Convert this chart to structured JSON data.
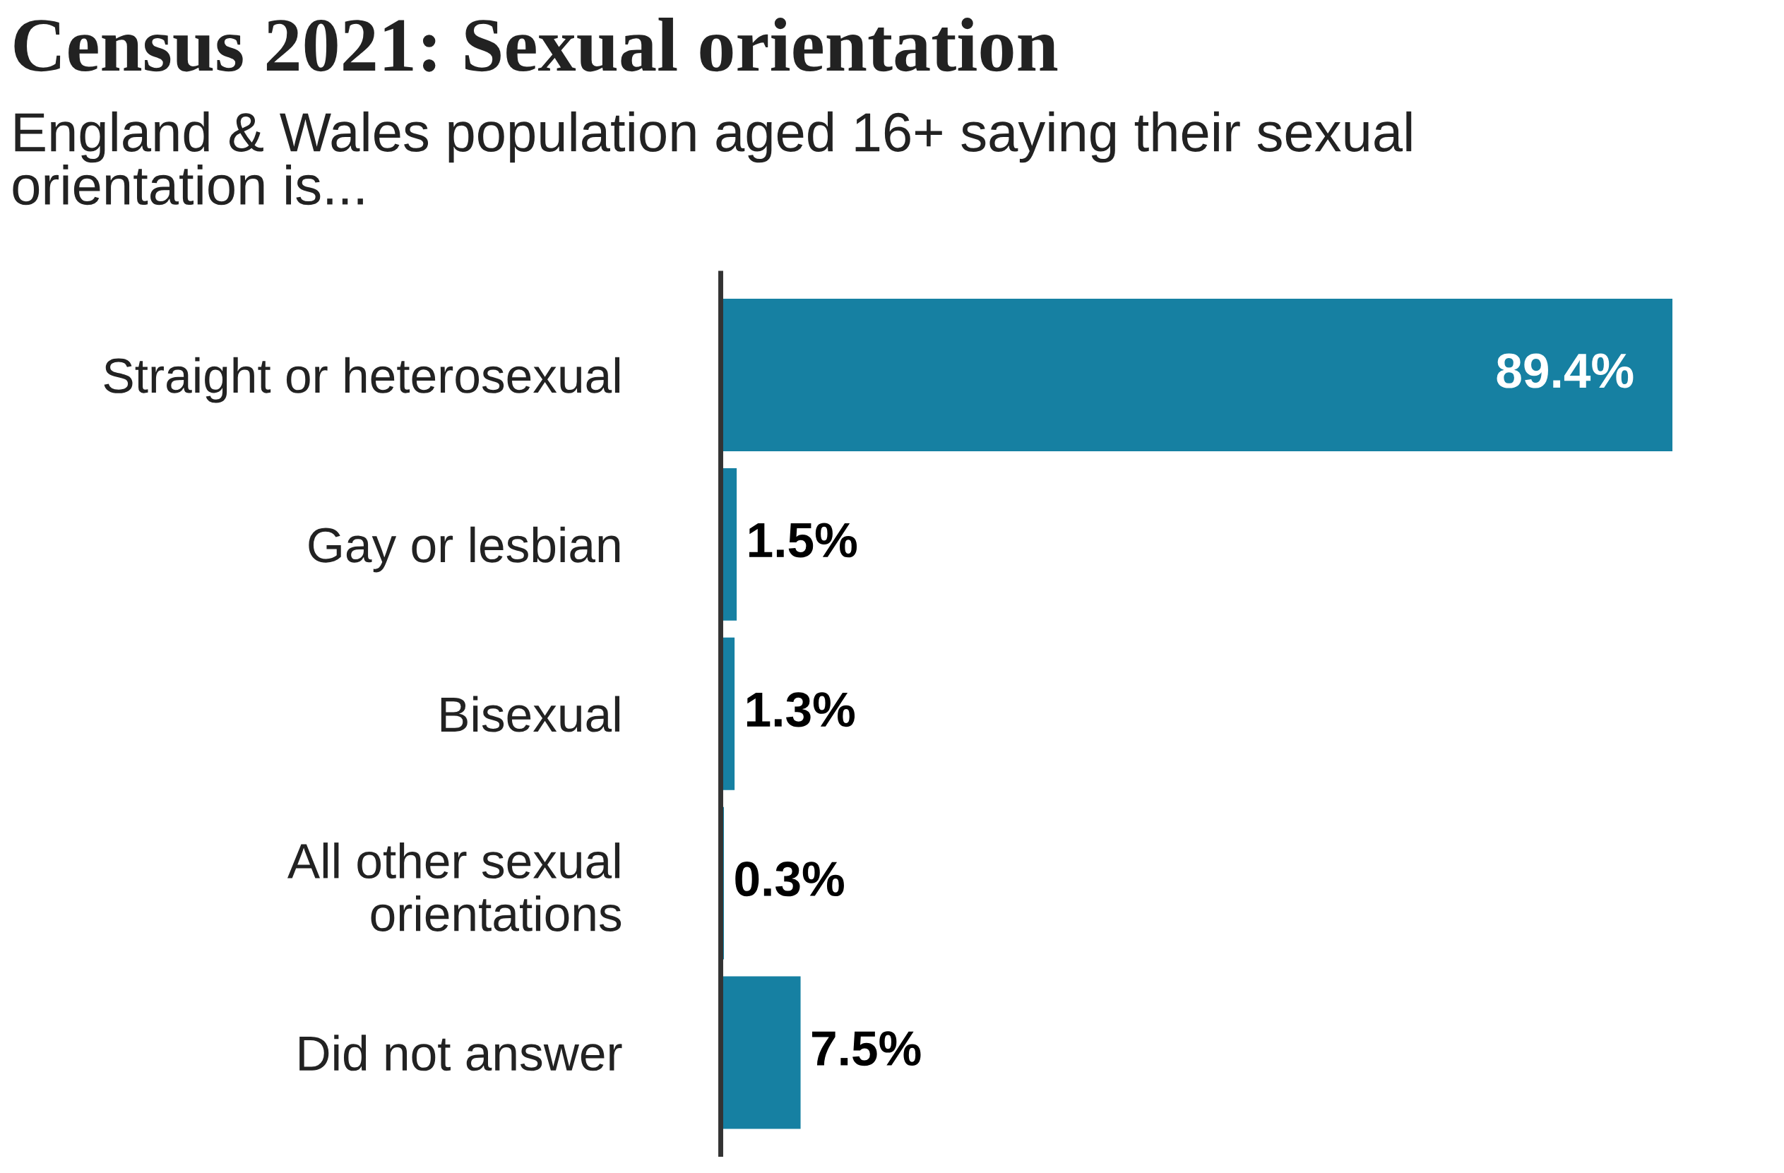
{
  "chart_data": {
    "type": "bar",
    "orientation": "horizontal",
    "title": "Census 2021: Sexual orientation",
    "subtitle": "England & Wales population aged 16+ saying their sexual\norientation is...",
    "categories": [
      "Straight or heterosexual",
      "Gay or lesbian",
      "Bisexual",
      "All other sexual\norientations",
      "Did not answer"
    ],
    "values": [
      89.4,
      1.5,
      1.3,
      0.3,
      7.5
    ],
    "value_labels": [
      "89.4%",
      "1.5%",
      "1.3%",
      "0.3%",
      "7.5%"
    ],
    "color": "#1680a2",
    "grid": false,
    "legend": false
  }
}
